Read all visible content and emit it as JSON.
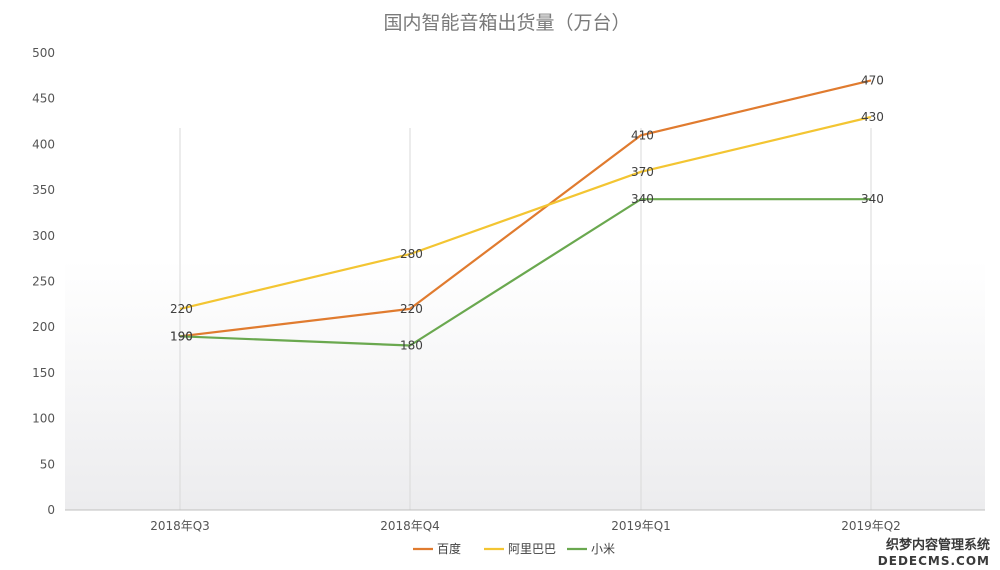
{
  "chart_data": {
    "type": "line",
    "title": "国内智能音箱出货量（万台）",
    "categories": [
      "2018年Q3",
      "2018年Q4",
      "2019年Q1",
      "2019年Q2"
    ],
    "y_ticks": [
      0,
      50,
      100,
      150,
      200,
      250,
      300,
      350,
      400,
      450,
      500
    ],
    "ylim": [
      0,
      500
    ],
    "grid": "vertical lines at categories",
    "legend": "bottom-center",
    "series": [
      {
        "name": "百度",
        "color": "#e07b2f",
        "values": [
          190,
          220,
          410,
          470
        ]
      },
      {
        "name": "阿里巴巴",
        "color": "#f3c532",
        "values": [
          220,
          280,
          370,
          430
        ]
      },
      {
        "name": "小米",
        "color": "#6aa84f",
        "values": [
          190,
          180,
          340,
          340
        ]
      }
    ]
  },
  "watermark": {
    "line1": "织梦内容管理系统",
    "line2": "DEDECMS.COM"
  }
}
